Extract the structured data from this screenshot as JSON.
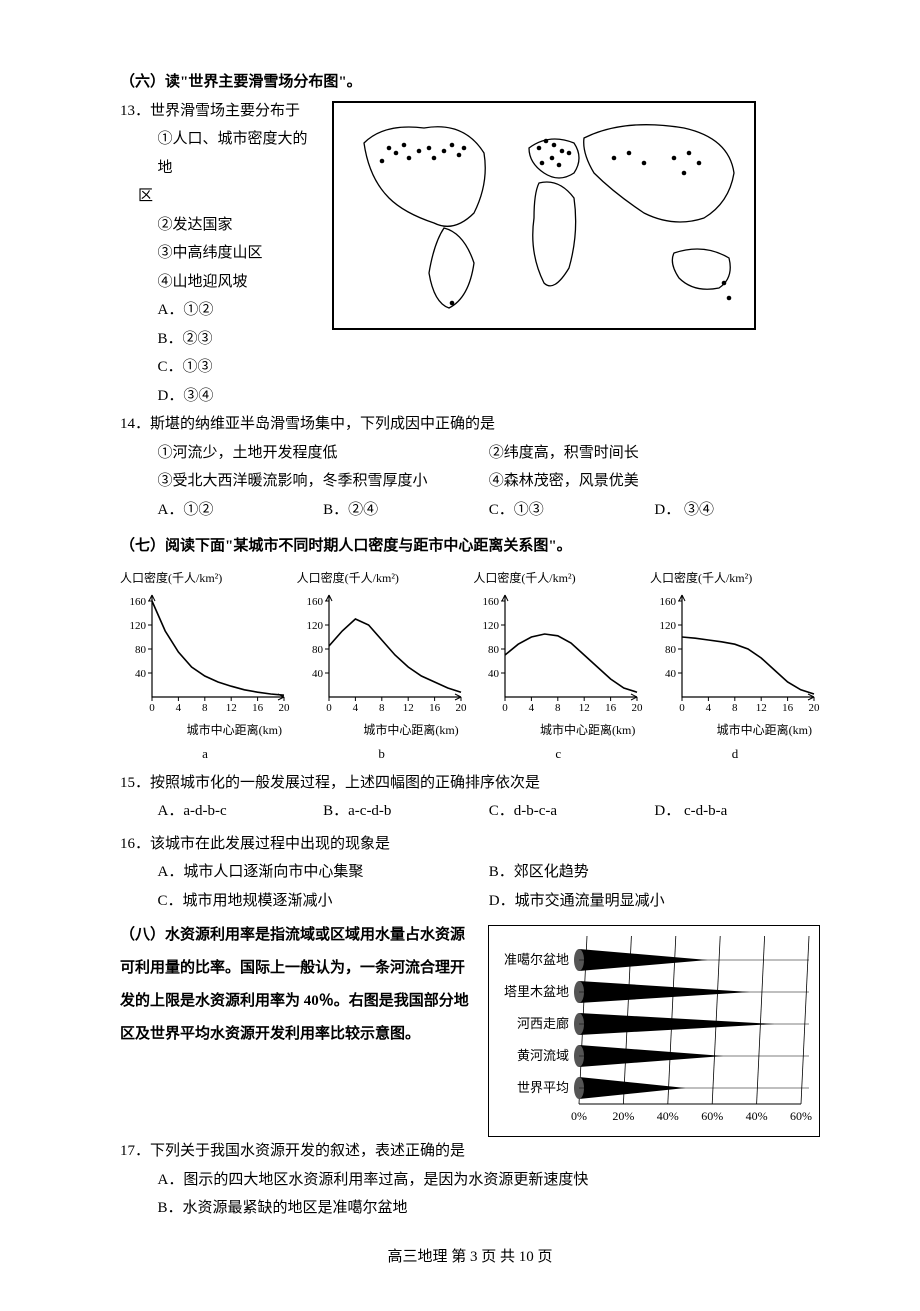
{
  "section6": {
    "title": "（六）读\"世界主要滑雪场分布图\"。",
    "q13": {
      "stem": "13．世界滑雪场主要分布于",
      "items": [
        "①人口、城市密度大的地",
        "区",
        "②发达国家",
        "③中高纬度山区",
        "④山地迎风坡"
      ],
      "opts": [
        "A．①②",
        "B．②③",
        "C．①③",
        "D．③④"
      ]
    },
    "q14": {
      "stem": "14．斯堪的纳维亚半岛滑雪场集中，下列成因中正确的是",
      "items": [
        [
          "①河流少，土地开发程度低",
          "②纬度高，积雪时间长"
        ],
        [
          "③受北大西洋暖流影响，冬季积雪厚度小",
          "④森林茂密，风景优美"
        ]
      ],
      "opts": [
        "A．①②",
        "B．②④",
        "C．①③",
        "D．  ③④"
      ]
    }
  },
  "section7": {
    "title": "（七）阅读下面\"某城市不同时期人口密度与距市中心距离关系图\"。",
    "charts": {
      "ylabel": "人口密度(千人/km²)",
      "xlabel": "城市中心距离(km)",
      "yticks": [
        40,
        80,
        120,
        160
      ],
      "xticks": [
        0,
        4,
        8,
        12,
        16,
        20
      ],
      "labels": [
        "a",
        "b",
        "c",
        "d"
      ],
      "axis_color": "#000",
      "curve_color": "#000",
      "fontsize": 12,
      "series": {
        "a": [
          [
            0,
            160
          ],
          [
            2,
            110
          ],
          [
            4,
            75
          ],
          [
            6,
            50
          ],
          [
            8,
            35
          ],
          [
            10,
            25
          ],
          [
            12,
            18
          ],
          [
            14,
            12
          ],
          [
            16,
            8
          ],
          [
            18,
            5
          ],
          [
            20,
            3
          ]
        ],
        "b": [
          [
            0,
            85
          ],
          [
            2,
            110
          ],
          [
            4,
            130
          ],
          [
            6,
            120
          ],
          [
            8,
            95
          ],
          [
            10,
            70
          ],
          [
            12,
            50
          ],
          [
            14,
            35
          ],
          [
            16,
            25
          ],
          [
            18,
            15
          ],
          [
            20,
            8
          ]
        ],
        "c": [
          [
            0,
            70
          ],
          [
            2,
            88
          ],
          [
            4,
            100
          ],
          [
            6,
            105
          ],
          [
            8,
            102
          ],
          [
            10,
            90
          ],
          [
            12,
            70
          ],
          [
            14,
            50
          ],
          [
            16,
            30
          ],
          [
            18,
            15
          ],
          [
            20,
            8
          ]
        ],
        "d": [
          [
            0,
            100
          ],
          [
            2,
            98
          ],
          [
            4,
            95
          ],
          [
            6,
            92
          ],
          [
            8,
            88
          ],
          [
            10,
            80
          ],
          [
            12,
            65
          ],
          [
            14,
            45
          ],
          [
            16,
            25
          ],
          [
            18,
            12
          ],
          [
            20,
            5
          ]
        ]
      }
    },
    "q15": {
      "stem": "15．按照城市化的一般发展过程，上述四幅图的正确排序依次是",
      "opts": [
        "A．a-d-b-c",
        "B．a-c-d-b",
        "C．d-b-c-a",
        "D．  c-d-b-a"
      ]
    },
    "q16": {
      "stem": "16．该城市在此发展过程中出现的现象是",
      "opts": [
        [
          "A．城市人口逐渐向市中心集聚",
          "B．郊区化趋势"
        ],
        [
          "C．城市用地规模逐渐减小",
          "D．城市交通流量明显减小"
        ]
      ]
    }
  },
  "section8": {
    "intro": "（八）水资源利用率是指流域或区域用水量占水资源可利用量的比率。国际上一般认为，一条河流合理开发的上限是水资源利用率为 40％。右图是我国部分地区及世界平均水资源开发利用率比较示意图。",
    "chart": {
      "categories": [
        "准噶尔盆地",
        "塔里木盆地",
        "河西走廊",
        "黄河流域",
        "世界平均"
      ],
      "values": [
        58,
        77,
        88,
        65,
        48
      ],
      "xticks": [
        "0%",
        "20%",
        "40%",
        "60%",
        "40%",
        "60%"
      ],
      "bar_color": "#000",
      "fontsize": 12
    },
    "q17": {
      "stem": "17．下列关于我国水资源开发的叙述，表述正确的是",
      "opts": [
        "A．图示的四大地区水资源利用率过高，是因为水资源更新速度快",
        "B．水资源最紧缺的地区是准噶尔盆地"
      ]
    }
  },
  "footer": "高三地理  第 3 页  共 10 页"
}
